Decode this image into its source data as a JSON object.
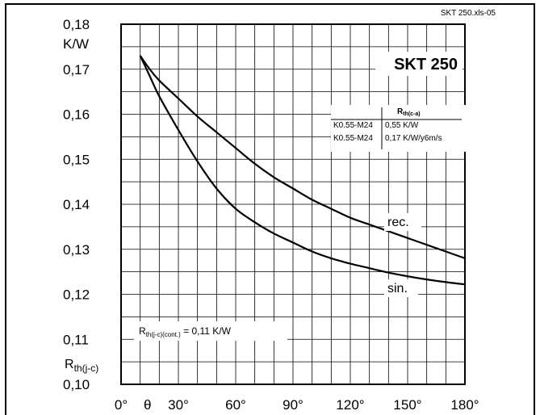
{
  "file_ref": "SKT 250.xls-05",
  "chart_data": {
    "type": "line",
    "title": "SKT 250",
    "x_unit_symbol": "θ",
    "y_unit": "K/W",
    "y_label": {
      "main": "R",
      "sub": "th(j-c)"
    },
    "xlim": [
      0,
      180
    ],
    "ylim": [
      0.1,
      0.18
    ],
    "x_ticks": [
      0,
      30,
      60,
      90,
      120,
      150,
      180
    ],
    "x_tick_labels": [
      "0°",
      "30°",
      "60°",
      "90°",
      "120°",
      "150°",
      "180°"
    ],
    "y_ticks": [
      0.1,
      0.11,
      0.12,
      0.13,
      0.14,
      0.15,
      0.16,
      0.17,
      0.18
    ],
    "y_tick_labels": [
      "0,10",
      "0,11",
      "0,12",
      "0,13",
      "0,14",
      "0,15",
      "0,16",
      "0,17",
      "0,18"
    ],
    "grid": true,
    "series": [
      {
        "name": "rec.",
        "x": [
          10,
          15,
          20,
          30,
          40,
          50,
          60,
          70,
          80,
          90,
          100,
          110,
          120,
          130,
          140,
          150,
          160,
          170,
          180
        ],
        "y": [
          0.173,
          0.17,
          0.1675,
          0.1635,
          0.1595,
          0.156,
          0.1525,
          0.149,
          0.146,
          0.1435,
          0.141,
          0.139,
          0.137,
          0.1355,
          0.134,
          0.1325,
          0.131,
          0.1295,
          0.128
        ]
      },
      {
        "name": "sin.",
        "x": [
          10,
          15,
          20,
          30,
          40,
          50,
          60,
          70,
          80,
          90,
          100,
          110,
          120,
          130,
          140,
          150,
          160,
          170,
          180
        ],
        "y": [
          0.173,
          0.1685,
          0.164,
          0.1565,
          0.1495,
          0.1435,
          0.139,
          0.136,
          0.1335,
          0.1315,
          0.1295,
          0.128,
          0.1268,
          0.1258,
          0.1248,
          0.124,
          0.1233,
          0.1227,
          0.1222
        ]
      }
    ],
    "table": {
      "header": {
        "main": "R",
        "sub": "th(c-a)"
      },
      "rows": [
        [
          "K0.55-M24",
          "0,55 K/W"
        ],
        [
          "K0.55-M24",
          "0,17 K/W/y6m/s"
        ]
      ]
    },
    "annotation": {
      "main": "R",
      "sub": "th(j-c)(cont.)",
      "suffix": " = 0,11 K/W"
    }
  }
}
